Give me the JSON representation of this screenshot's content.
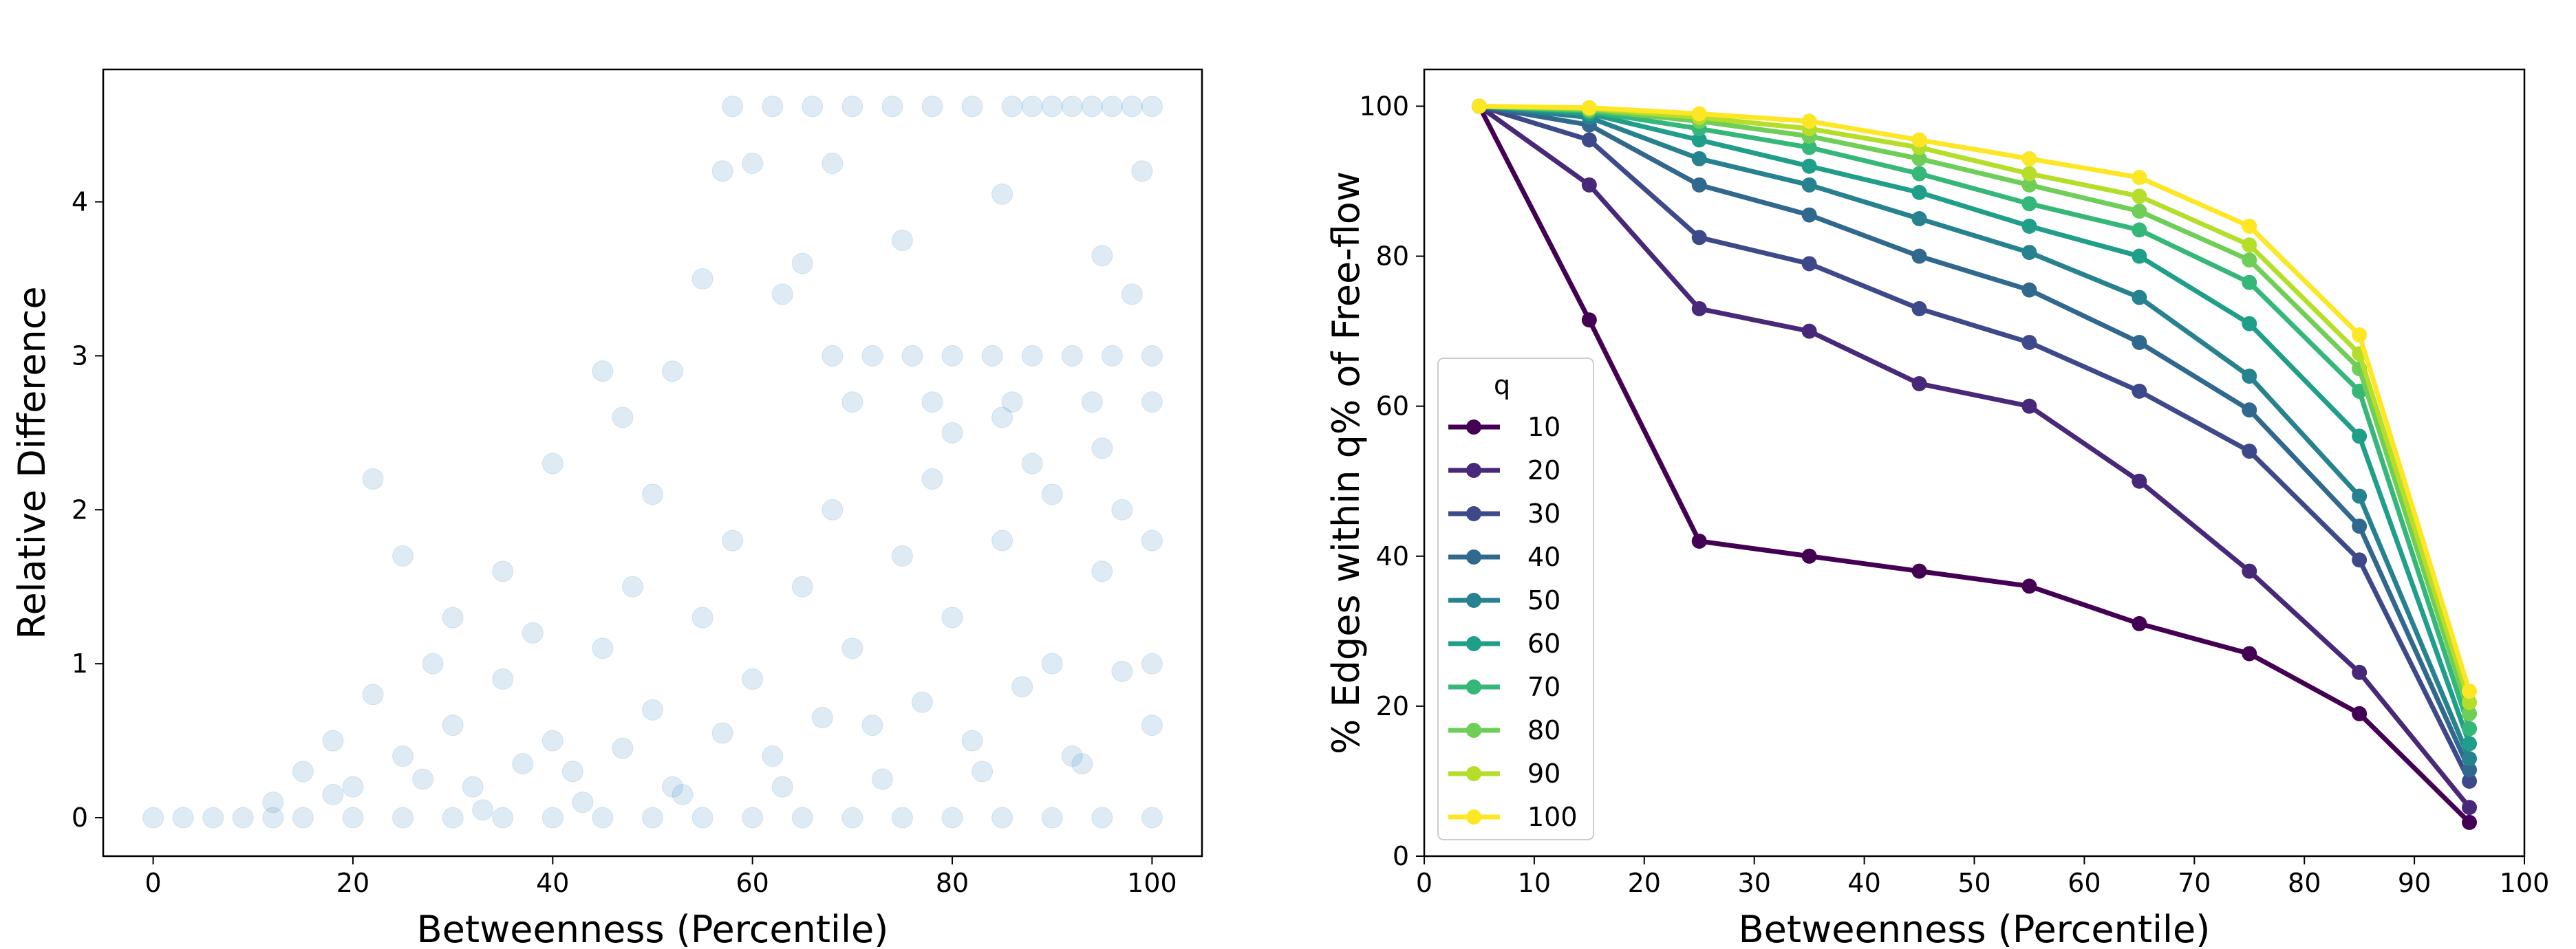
{
  "chart_data": [
    {
      "type": "scatter",
      "xlabel": "Betweenness (Percentile)",
      "ylabel": "Relative Difference",
      "color": "#1f77b4",
      "xlim": [
        -5,
        105
      ],
      "ylim": [
        -0.25,
        4.86
      ],
      "xticks": [
        0,
        20,
        40,
        60,
        80,
        100
      ],
      "yticks": [
        0,
        1,
        2,
        3,
        4
      ],
      "x": [
        0,
        3,
        6,
        9,
        12,
        15,
        20,
        25,
        30,
        35,
        40,
        45,
        50,
        55,
        60,
        65,
        70,
        75,
        80,
        85,
        90,
        95,
        100,
        58,
        62,
        66,
        70,
        74,
        78,
        82,
        86,
        88,
        90,
        92,
        94,
        96,
        98,
        100,
        68,
        72,
        76,
        80,
        84,
        88,
        92,
        96,
        100,
        70,
        78,
        86,
        94,
        100,
        22,
        25,
        30,
        35,
        40,
        45,
        50,
        55,
        57,
        60,
        63,
        65,
        68,
        75,
        85,
        95,
        99,
        98,
        47,
        52,
        12,
        15,
        18,
        20,
        22,
        25,
        28,
        30,
        32,
        35,
        38,
        40,
        42,
        45,
        48,
        50,
        52,
        55,
        58,
        60,
        62,
        65,
        68,
        70,
        72,
        75,
        78,
        80,
        82,
        85,
        88,
        90,
        92,
        95,
        97,
        100,
        100,
        100,
        18,
        27,
        37,
        47,
        57,
        67,
        77,
        87,
        97,
        33,
        43,
        53,
        63,
        73,
        83,
        93,
        85,
        90,
        80,
        95
      ],
      "y": [
        0,
        0,
        0,
        0,
        0,
        0,
        0,
        0,
        0,
        0,
        0,
        0,
        0,
        0,
        0,
        0,
        0,
        0,
        0,
        0,
        0,
        0,
        0,
        4.62,
        4.62,
        4.62,
        4.62,
        4.62,
        4.62,
        4.62,
        4.62,
        4.62,
        4.62,
        4.62,
        4.62,
        4.62,
        4.62,
        4.62,
        3.0,
        3.0,
        3.0,
        3.0,
        3.0,
        3.0,
        3.0,
        3.0,
        3.0,
        2.7,
        2.7,
        2.7,
        2.7,
        2.7,
        2.2,
        1.7,
        1.3,
        1.6,
        2.3,
        2.9,
        2.1,
        3.5,
        4.2,
        4.25,
        3.4,
        3.6,
        4.25,
        3.75,
        4.05,
        3.65,
        4.2,
        3.4,
        2.6,
        2.9,
        0.1,
        0.3,
        0.5,
        0.2,
        0.8,
        0.4,
        1.0,
        0.6,
        0.2,
        0.9,
        1.2,
        0.5,
        0.3,
        1.1,
        1.5,
        0.7,
        0.2,
        1.3,
        1.8,
        0.9,
        0.4,
        1.5,
        2.0,
        1.1,
        0.6,
        1.7,
        2.2,
        1.3,
        0.5,
        1.8,
        2.3,
        1.0,
        0.4,
        1.6,
        2.0,
        1.8,
        1.0,
        0.6,
        0.15,
        0.25,
        0.35,
        0.45,
        0.55,
        0.65,
        0.75,
        0.85,
        0.95,
        0.05,
        0.1,
        0.15,
        0.2,
        0.25,
        0.3,
        0.35,
        2.6,
        2.1,
        2.5,
        2.4
      ]
    },
    {
      "type": "line",
      "xlabel": "Betweenness (Percentile)",
      "ylabel": "% Edges within q% of Free-flow",
      "xlim": [
        0,
        100
      ],
      "ylim": [
        0,
        104.9
      ],
      "xticks": [
        0,
        10,
        20,
        30,
        40,
        50,
        60,
        70,
        80,
        90,
        100
      ],
      "yticks": [
        0,
        20,
        40,
        60,
        80,
        100
      ],
      "legend_title": "q",
      "legend": "lower left",
      "x": [
        5,
        15,
        25,
        35,
        45,
        55,
        65,
        75,
        85,
        95
      ],
      "series": [
        {
          "name": "10",
          "color": "#440154",
          "values": [
            100,
            71.5,
            42,
            40,
            38,
            36,
            31,
            27,
            19,
            4.5
          ]
        },
        {
          "name": "20",
          "color": "#482878",
          "values": [
            100,
            89.5,
            73,
            70,
            63,
            60,
            50,
            38,
            24.5,
            6.5
          ]
        },
        {
          "name": "30",
          "color": "#3e4989",
          "values": [
            100,
            95.5,
            82.5,
            79,
            73,
            68.5,
            62,
            54,
            39.5,
            10
          ]
        },
        {
          "name": "40",
          "color": "#31688e",
          "values": [
            100,
            97.5,
            89.5,
            85.5,
            80,
            75.5,
            68.5,
            59.5,
            44,
            11.5
          ]
        },
        {
          "name": "50",
          "color": "#26828e",
          "values": [
            100,
            98.5,
            93,
            89.5,
            85,
            80.5,
            74.5,
            64,
            48,
            13
          ]
        },
        {
          "name": "60",
          "color": "#1f9e89",
          "values": [
            100,
            99,
            95.5,
            92,
            88.5,
            84,
            80,
            71,
            56,
            15
          ]
        },
        {
          "name": "70",
          "color": "#35b779",
          "values": [
            100,
            99.3,
            97,
            94.5,
            91,
            87,
            83.5,
            76.5,
            62,
            17
          ]
        },
        {
          "name": "80",
          "color": "#6ece58",
          "values": [
            100,
            99.5,
            98,
            96,
            93,
            89.5,
            86,
            79.5,
            65,
            19
          ]
        },
        {
          "name": "90",
          "color": "#b5de2b",
          "values": [
            100,
            99.7,
            98.5,
            97,
            94.5,
            91,
            88,
            81.5,
            67,
            20.5
          ]
        },
        {
          "name": "100",
          "color": "#fde725",
          "values": [
            100,
            99.8,
            99,
            98,
            95.5,
            93,
            90.5,
            84,
            69.5,
            22
          ]
        }
      ]
    }
  ]
}
